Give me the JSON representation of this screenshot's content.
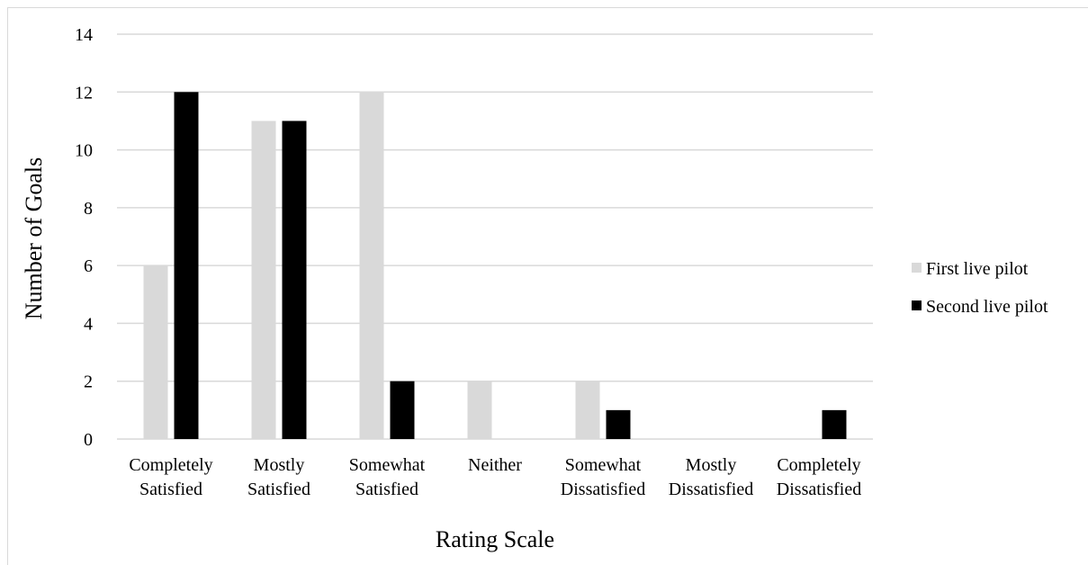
{
  "chart_data": {
    "type": "bar",
    "title": "",
    "xlabel": "Rating Scale",
    "ylabel": "Number of Goals",
    "ylim": [
      0,
      14
    ],
    "yticks": [
      0,
      2,
      4,
      6,
      8,
      10,
      12,
      14
    ],
    "grid": true,
    "legend_position": "right",
    "categories": [
      [
        "Completely",
        "Satisfied"
      ],
      [
        "Mostly",
        "Satisfied"
      ],
      [
        "Somewhat",
        "Satisfied"
      ],
      [
        "Neither"
      ],
      [
        "Somewhat",
        "Dissatisfied"
      ],
      [
        "Mostly",
        "Dissatisfied"
      ],
      [
        "Completely",
        "Dissatisfied"
      ]
    ],
    "series": [
      {
        "name": "First live pilot",
        "color": "#d9d9d9",
        "values": [
          6,
          11,
          12,
          2,
          2,
          0,
          0
        ]
      },
      {
        "name": "Second live pilot",
        "color": "#000000",
        "values": [
          12,
          11,
          2,
          0,
          1,
          0,
          1
        ]
      }
    ]
  }
}
